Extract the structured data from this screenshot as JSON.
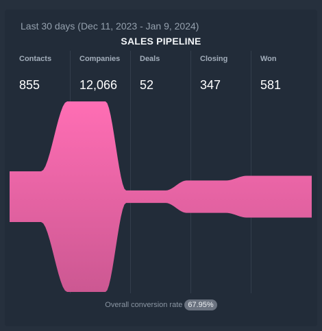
{
  "date_range": "Last 30 days (Dec 11, 2023 - Jan 9, 2024)",
  "title": "SALES PIPELINE",
  "footer": {
    "label": "Overall conversion rate",
    "rate": "67.95%"
  },
  "colors": {
    "funnel_top": "#ff6eb4",
    "funnel_bottom": "#cc5892",
    "background": "#26303d"
  },
  "chart_data": {
    "type": "funnel",
    "categories": [
      "Contacts",
      "Companies",
      "Deals",
      "Closing",
      "Won"
    ],
    "values": [
      855,
      12066,
      52,
      347,
      581
    ],
    "value_labels": [
      "855",
      "12,066",
      "52",
      "347",
      "581"
    ]
  }
}
